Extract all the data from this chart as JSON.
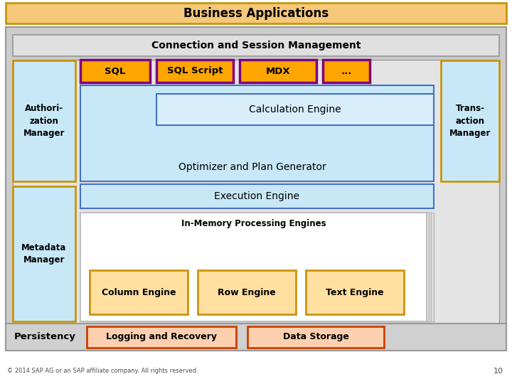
{
  "title": "Business Applications",
  "title_bg": "#F5C87A",
  "title_border": "#C8960C",
  "conn_session": "Connection and Session Management",
  "conn_bg": "#E0E0E0",
  "conn_border": "#A0A0A0",
  "outer_bg": "#CCCCCC",
  "outer_border": "#999999",
  "inner_bg": "#E8E8E8",
  "inner_border": "#A0A0A0",
  "sql_boxes": [
    "SQL",
    "SQL Script",
    "MDX",
    "..."
  ],
  "sql_bg": "#FFA500",
  "sql_border": "#800080",
  "authori_text": "Authori-\nzation\nManager",
  "authori_bg": "#C8E8F8",
  "authori_border": "#C8960C",
  "calc_text": "Calculation Engine",
  "calc_bg": "#C8E8F8",
  "calc_border": "#4472C4",
  "optim_text": "Optimizer and Plan Generator",
  "exec_text": "Execution Engine",
  "exec_bg": "#C8E8F8",
  "exec_border": "#4472C4",
  "inmem_text": "In-Memory Processing Engines",
  "inmem_bg": "#FFFFFF",
  "inmem_border": "#C0C0C0",
  "engine_boxes": [
    "Column Engine",
    "Row Engine",
    "Text Engine"
  ],
  "engine_bg": "#FFE0A0",
  "engine_border": "#C8960C",
  "meta_text": "Metadata\nManager",
  "meta_bg": "#C8E8F8",
  "meta_border": "#C8960C",
  "trans_text": "Trans-\naction\nManager",
  "trans_bg": "#C8E8F8",
  "trans_border": "#C8960C",
  "persist_text": "Persistency",
  "persist_bg": "#D0D0D0",
  "persist_border": "#999999",
  "log_text": "Logging and Recovery",
  "log_bg": "#FFD0B0",
  "log_border": "#C84000",
  "data_text": "Data Storage",
  "data_bg": "#FFD0B0",
  "data_border": "#C84000",
  "footer": "© 2014 SAP AG or an SAP affiliate company. All rights reserved.",
  "page_num": "10",
  "bg_color": "#FFFFFF"
}
